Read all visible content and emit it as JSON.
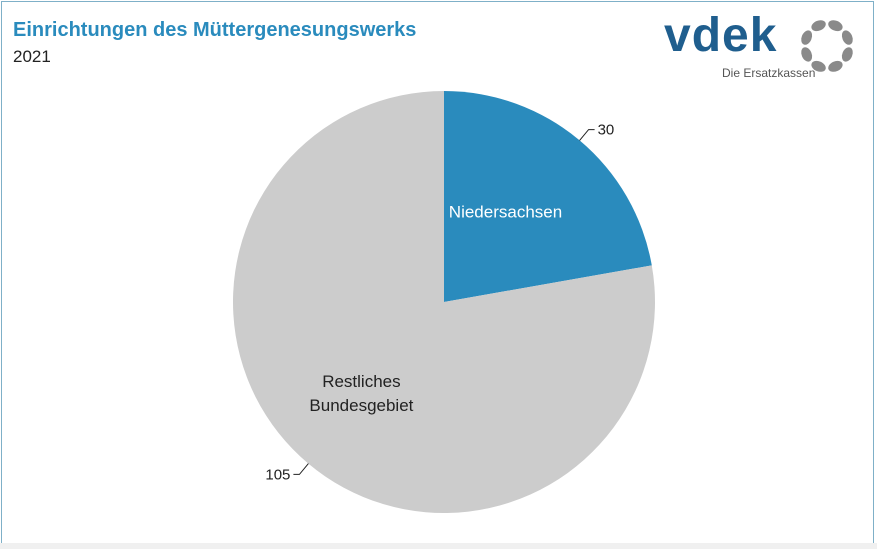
{
  "header": {
    "title": "Einrichtungen des Müttergenesungswerks",
    "subtitle": "2021"
  },
  "logo": {
    "wordmark": "vdek",
    "tagline": "Die Ersatzkassen",
    "icon": "dotted-ring-logo",
    "colors": {
      "wordmark": "#1f5e8e",
      "ring": "#8a8a8a"
    }
  },
  "chart_data": {
    "type": "pie",
    "title": "Einrichtungen des Müttergenesungswerks",
    "subtitle": "2021",
    "slices": [
      {
        "label": "Niedersachsen",
        "value": 30,
        "value_label": "30",
        "color": "#2a8bbd"
      },
      {
        "label": "Restliches Bundesgebiet",
        "label_lines": [
          "Restliches",
          "Bundesgebiet"
        ],
        "value": 105,
        "value_label": "105",
        "color": "#cccccc"
      }
    ],
    "start": "12 o'clock",
    "direction": "clockwise",
    "legend": "none"
  }
}
